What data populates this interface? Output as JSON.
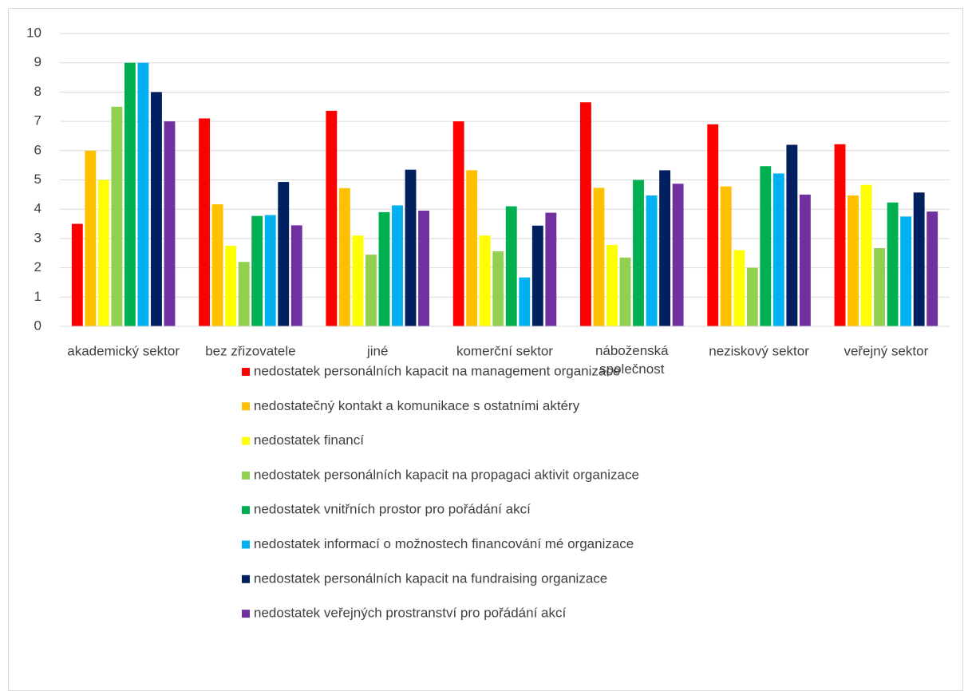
{
  "chart_data": {
    "type": "bar",
    "categories": [
      "akademický sektor",
      "bez zřizovatele",
      "jiné",
      "komerční sektor",
      "náboženská společnost",
      "neziskový sektor",
      "veřejný sektor"
    ],
    "series": [
      {
        "name": "nedostatek personálních kapacit na management organizace",
        "color": "#ff0000",
        "values": [
          3.5,
          7.1,
          7.36,
          7.0,
          7.65,
          6.9,
          6.22
        ]
      },
      {
        "name": "nedostatečný kontakt a komunikace s ostatními aktéry",
        "color": "#ffc000",
        "values": [
          6,
          4.17,
          4.72,
          5.33,
          4.73,
          4.78,
          4.47
        ]
      },
      {
        "name": "nedostatek financí",
        "color": "#ffff00",
        "values": [
          5,
          2.75,
          3.1,
          3.1,
          2.78,
          2.6,
          4.83
        ]
      },
      {
        "name": "nedostatek personálních kapacit na propagaci aktivit organizace",
        "color": "#92d050",
        "values": [
          7.5,
          2.2,
          2.45,
          2.56,
          2.35,
          2.0,
          2.67
        ]
      },
      {
        "name": "nedostatek vnitřních prostor pro pořádání akcí",
        "color": "#00b050",
        "values": [
          9,
          3.77,
          3.9,
          4.1,
          5.0,
          5.47,
          4.23
        ]
      },
      {
        "name": "nedostatek informací o možnostech financování mé organizace",
        "color": "#00b0f0",
        "values": [
          9,
          3.8,
          4.13,
          1.67,
          4.47,
          5.22,
          3.75
        ]
      },
      {
        "name": "nedostatek personálních kapacit na fundraising organizace",
        "color": "#002060",
        "values": [
          8,
          4.93,
          5.35,
          3.44,
          5.33,
          6.2,
          4.57
        ]
      },
      {
        "name": "nedostatek veřejných prostranství pro pořádání akcí",
        "color": "#7030a0",
        "values": [
          7,
          3.45,
          3.95,
          3.88,
          4.87,
          4.5,
          3.92
        ]
      }
    ],
    "ylim": [
      0,
      10
    ],
    "yticks": [
      0,
      1,
      2,
      3,
      4,
      5,
      6,
      7,
      8,
      9,
      10
    ],
    "grid": true,
    "legend": "bottom"
  }
}
